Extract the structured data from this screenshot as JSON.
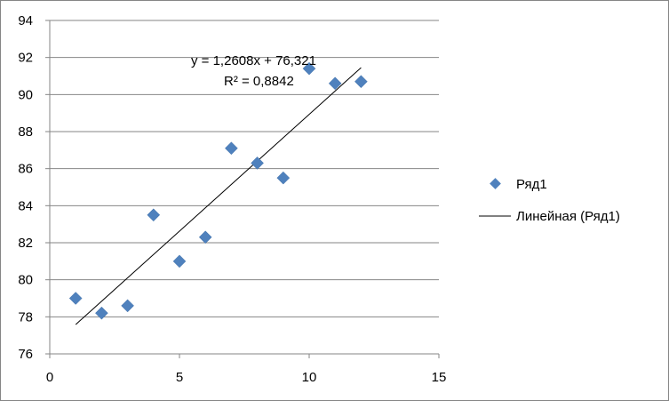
{
  "chart_data": {
    "type": "scatter",
    "title": "",
    "xlabel": "",
    "ylabel": "",
    "xlim": [
      0,
      15
    ],
    "ylim": [
      76,
      94
    ],
    "x_ticks": [
      "0",
      "5",
      "10",
      "15"
    ],
    "y_ticks": [
      "76",
      "78",
      "80",
      "82",
      "84",
      "86",
      "88",
      "90",
      "92",
      "94"
    ],
    "grid": "horizontal",
    "legend_position": "right",
    "series": [
      {
        "name": "Ряд1",
        "marker": "diamond",
        "color": "#4F81BD",
        "x": [
          1,
          2,
          3,
          4,
          5,
          6,
          7,
          8,
          9,
          10,
          11,
          12
        ],
        "y": [
          79.0,
          78.2,
          78.6,
          83.5,
          81.0,
          82.3,
          87.1,
          86.3,
          85.5,
          91.4,
          90.6,
          90.7
        ]
      }
    ],
    "trendline": {
      "name": "Линейная (Ряд1)",
      "slope": 1.2608,
      "intercept": 76.321,
      "x_range": [
        1,
        12
      ],
      "equation_label": "y = 1,2608x + 76,321",
      "r2_label": "R² = 0,8842",
      "color": "#000000"
    }
  }
}
